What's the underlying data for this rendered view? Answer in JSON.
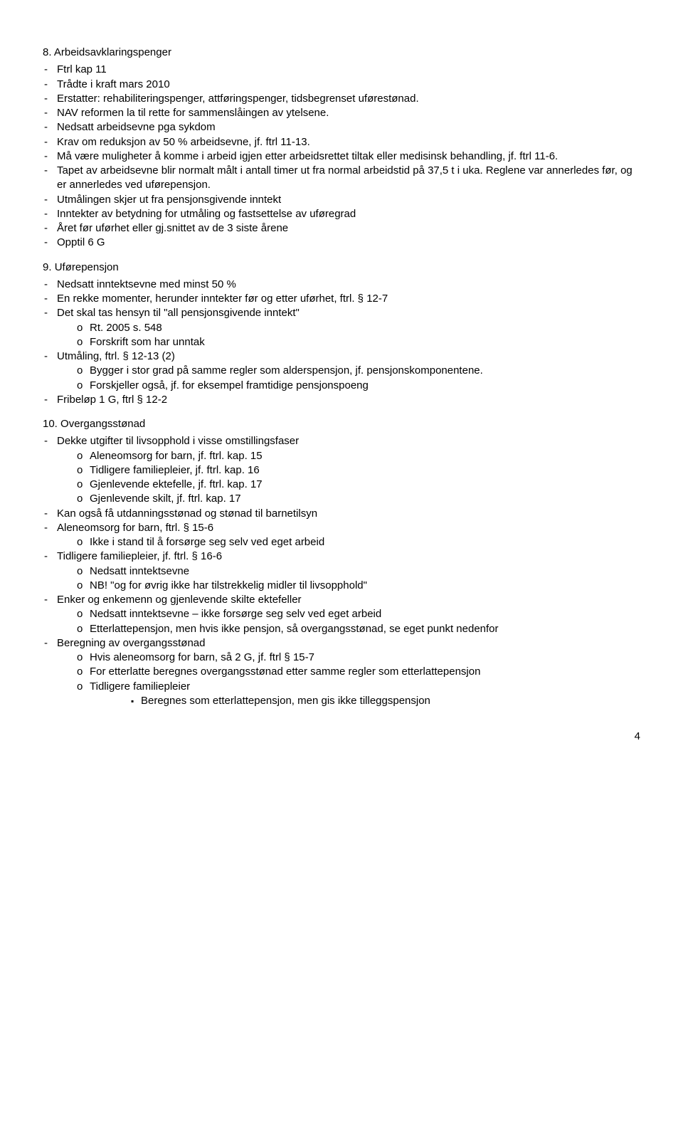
{
  "sections": [
    {
      "num": "8.",
      "title": "Arbeidsavklaringspenger",
      "items": [
        {
          "t": "Ftrl kap 11"
        },
        {
          "t": "Trådte i kraft mars 2010"
        },
        {
          "t": "Erstatter: rehabiliteringspenger, attføringspenger, tidsbegrenset uførestønad."
        },
        {
          "t": "NAV reformen la til rette for sammenslåingen av ytelsene."
        },
        {
          "t": "Nedsatt arbeidsevne pga sykdom"
        },
        {
          "t": "Krav om reduksjon av 50 % arbeidsevne, jf. ftrl 11-13."
        },
        {
          "t": "Må være muligheter å komme i arbeid igjen etter arbeidsrettet tiltak eller medisinsk behandling, jf. ftrl 11-6."
        },
        {
          "t": "Tapet av arbeidsevne blir normalt målt i antall timer ut fra normal arbeidstid på 37,5 t i uka. Reglene var annerledes før, og er annerledes ved uførepensjon."
        },
        {
          "t": "Utmålingen skjer ut fra pensjonsgivende inntekt"
        },
        {
          "t": "Inntekter av betydning for utmåling og fastsettelse av uføregrad"
        },
        {
          "t": "Året før uførhet eller gj.snittet av de 3 siste årene"
        },
        {
          "t": "Opptil 6 G"
        }
      ]
    },
    {
      "num": "9.",
      "title": "Uførepensjon",
      "items": [
        {
          "t": "Nedsatt inntektsevne med minst 50 %"
        },
        {
          "t": "En rekke momenter, herunder inntekter før og etter uførhet, ftrl. § 12-7"
        },
        {
          "t": "Det skal tas hensyn til \"all pensjonsgivende inntekt\"",
          "sub": [
            {
              "t": "Rt. 2005 s. 548"
            },
            {
              "t": "Forskrift som har unntak"
            }
          ]
        },
        {
          "t": "Utmåling, ftrl. § 12-13 (2)",
          "sub": [
            {
              "t": "Bygger i stor grad på samme regler som alderspensjon, jf. pensjonskomponentene."
            },
            {
              "t": "Forskjeller også, jf. for eksempel framtidige pensjonspoeng"
            }
          ]
        },
        {
          "t": "Fribeløp 1 G, ftrl § 12-2"
        }
      ]
    },
    {
      "num": "10.",
      "title": "Overgangsstønad",
      "items": [
        {
          "t": "Dekke utgifter til livsopphold i visse omstillingsfaser",
          "sub": [
            {
              "t": "Aleneomsorg for barn, jf. ftrl. kap. 15"
            },
            {
              "t": "Tidligere familiepleier, jf. ftrl. kap. 16"
            },
            {
              "t": "Gjenlevende ektefelle, jf. ftrl. kap. 17"
            },
            {
              "t": "Gjenlevende skilt, jf. ftrl. kap. 17"
            }
          ]
        },
        {
          "t": "Kan også få utdanningsstønad og stønad til barnetilsyn"
        },
        {
          "t": "Aleneomsorg for barn, ftrl. § 15-6",
          "sub": [
            {
              "t": "Ikke i stand til å forsørge seg selv ved eget arbeid"
            }
          ]
        },
        {
          "t": "Tidligere familiepleier, jf. ftrl. § 16-6",
          "sub": [
            {
              "t": "Nedsatt inntektsevne"
            },
            {
              "t": "NB! \"og for øvrig ikke har tilstrekkelig midler til livsopphold\""
            }
          ]
        },
        {
          "t": "Enker og enkemenn og gjenlevende skilte ektefeller",
          "sub": [
            {
              "t": "Nedsatt inntektsevne – ikke forsørge seg selv ved eget arbeid"
            },
            {
              "t": "Etterlattepensjon, men hvis ikke pensjon, så overgangsstønad, se eget punkt nedenfor"
            }
          ]
        },
        {
          "t": "Beregning av overgangsstønad",
          "sub": [
            {
              "t": "Hvis aleneomsorg for barn, så 2 G, jf. ftrl § 15-7"
            },
            {
              "t": "For etterlatte beregnes overgangsstønad etter samme regler som etterlattepensjon"
            },
            {
              "t": "Tidligere familiepleier",
              "sub2": [
                {
                  "t": "Beregnes som etterlattepensjon, men gis ikke tilleggspensjon"
                }
              ]
            }
          ]
        }
      ]
    }
  ],
  "pageNumber": "4"
}
